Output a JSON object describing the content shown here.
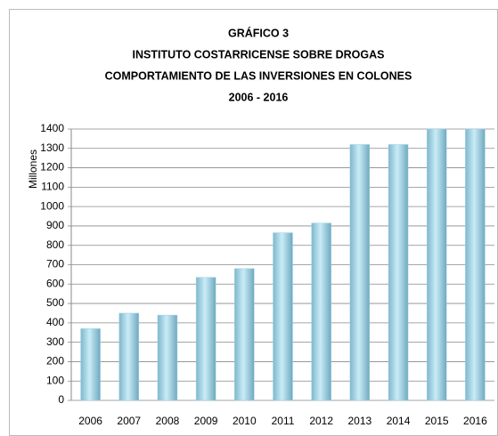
{
  "chart_data": {
    "type": "bar",
    "title": [
      "GRÁFICO 3",
      "INSTITUTO COSTARRICENSE SOBRE DROGAS",
      "COMPORTAMIENTO DE LAS INVERSIONES EN COLONES",
      "2006 - 2016"
    ],
    "y_label": "Millones",
    "categories": [
      "2006",
      "2007",
      "2008",
      "2009",
      "2010",
      "2011",
      "2012",
      "2013",
      "2014",
      "2015",
      "2016"
    ],
    "values": [
      370,
      450,
      440,
      635,
      680,
      865,
      915,
      1320,
      1320,
      1400,
      1400
    ],
    "color": "#9fd3e6",
    "ylim": [
      0,
      1400
    ],
    "yticks": [
      0,
      100,
      200,
      300,
      400,
      500,
      600,
      700,
      800,
      900,
      1000,
      1100,
      1200,
      1300,
      1400
    ],
    "grid": true
  }
}
